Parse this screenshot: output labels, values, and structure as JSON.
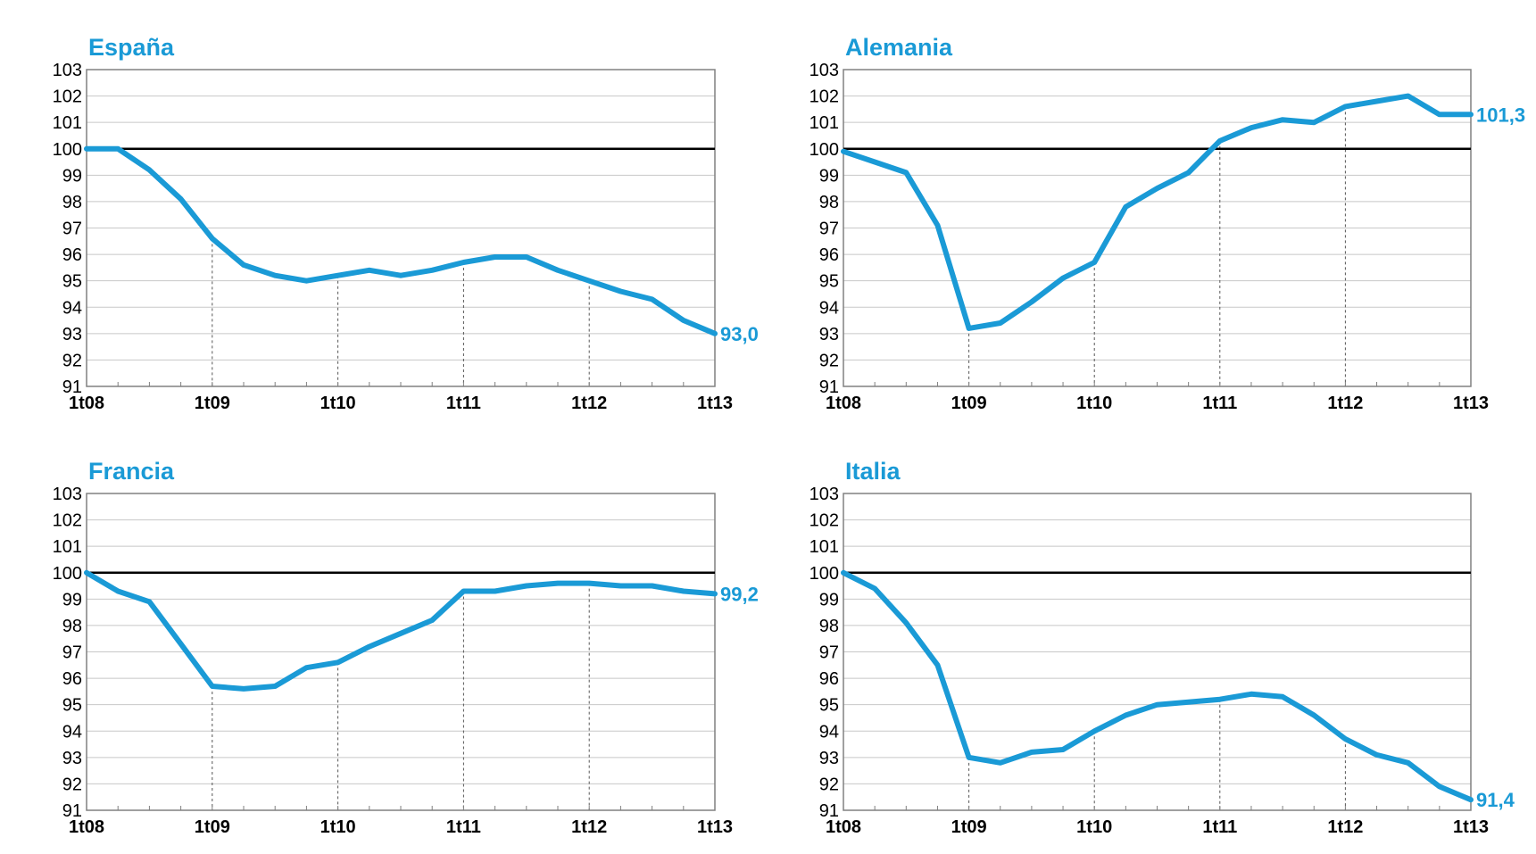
{
  "colors": {
    "series": "#1a9ad6",
    "title": "#1a9ad6",
    "baseline": "#000000",
    "grid": "#c8c8c8",
    "frame": "#808080"
  },
  "chart_data": [
    {
      "type": "line",
      "title": "España",
      "categories": [
        "1t08",
        "2t08",
        "3t08",
        "4t08",
        "1t09",
        "2t09",
        "3t09",
        "4t09",
        "1t10",
        "2t10",
        "3t10",
        "4t10",
        "1t11",
        "2t11",
        "3t11",
        "4t11",
        "1t12",
        "2t12",
        "3t12",
        "4t12",
        "1t13"
      ],
      "x_ticks": [
        "1t08",
        "1t09",
        "1t10",
        "1t11",
        "1t12",
        "1t13"
      ],
      "values": [
        100.0,
        100.0,
        99.2,
        98.1,
        96.6,
        95.6,
        95.2,
        95.0,
        95.2,
        95.4,
        95.2,
        95.4,
        95.7,
        95.9,
        95.9,
        95.4,
        95.0,
        94.6,
        94.3,
        93.5,
        93.0
      ],
      "end_label": "93,0",
      "ylim": [
        91,
        103
      ],
      "y_ticks": [
        "91",
        "92",
        "93",
        "94",
        "95",
        "96",
        "97",
        "98",
        "99",
        "100",
        "101",
        "102",
        "103"
      ],
      "baseline": 100,
      "grid": true
    },
    {
      "type": "line",
      "title": "Alemania",
      "categories": [
        "1t08",
        "2t08",
        "3t08",
        "4t08",
        "1t09",
        "2t09",
        "3t09",
        "4t09",
        "1t10",
        "2t10",
        "3t10",
        "4t10",
        "1t11",
        "2t11",
        "3t11",
        "4t11",
        "1t12",
        "2t12",
        "3t12",
        "4t12",
        "1t13"
      ],
      "x_ticks": [
        "1t08",
        "1t09",
        "1t10",
        "1t11",
        "1t12",
        "1t13"
      ],
      "values": [
        99.9,
        99.5,
        99.1,
        97.1,
        93.2,
        93.4,
        94.2,
        95.1,
        95.7,
        97.8,
        98.5,
        99.1,
        100.3,
        100.8,
        101.1,
        101.0,
        101.6,
        101.8,
        102.0,
        101.3,
        101.3
      ],
      "end_label": "101,3",
      "ylim": [
        91,
        103
      ],
      "y_ticks": [
        "91",
        "92",
        "93",
        "94",
        "95",
        "96",
        "97",
        "98",
        "99",
        "100",
        "101",
        "102",
        "103"
      ],
      "baseline": 100,
      "grid": true
    },
    {
      "type": "line",
      "title": "Francia",
      "categories": [
        "1t08",
        "2t08",
        "3t08",
        "4t08",
        "1t09",
        "2t09",
        "3t09",
        "4t09",
        "1t10",
        "2t10",
        "3t10",
        "4t10",
        "1t11",
        "2t11",
        "3t11",
        "4t11",
        "1t12",
        "2t12",
        "3t12",
        "4t12",
        "1t13"
      ],
      "x_ticks": [
        "1t08",
        "1t09",
        "1t10",
        "1t11",
        "1t12",
        "1t13"
      ],
      "values": [
        100.0,
        99.3,
        98.9,
        97.3,
        95.7,
        95.6,
        95.7,
        96.4,
        96.6,
        97.2,
        97.7,
        98.2,
        99.3,
        99.3,
        99.5,
        99.6,
        99.6,
        99.5,
        99.5,
        99.3,
        99.2
      ],
      "end_label": "99,2",
      "ylim": [
        91,
        103
      ],
      "y_ticks": [
        "91",
        "92",
        "93",
        "94",
        "95",
        "96",
        "97",
        "98",
        "99",
        "100",
        "101",
        "102",
        "103"
      ],
      "baseline": 100,
      "grid": true
    },
    {
      "type": "line",
      "title": "Italia",
      "categories": [
        "1t08",
        "2t08",
        "3t08",
        "4t08",
        "1t09",
        "2t09",
        "3t09",
        "4t09",
        "1t10",
        "2t10",
        "3t10",
        "4t10",
        "1t11",
        "2t11",
        "3t11",
        "4t11",
        "1t12",
        "2t12",
        "3t12",
        "4t12",
        "1t13"
      ],
      "x_ticks": [
        "1t08",
        "1t09",
        "1t10",
        "1t11",
        "1t12",
        "1t13"
      ],
      "values": [
        100.0,
        99.4,
        98.1,
        96.5,
        93.0,
        92.8,
        93.2,
        93.3,
        94.0,
        94.6,
        95.0,
        95.1,
        95.2,
        95.4,
        95.3,
        94.6,
        93.7,
        93.1,
        92.8,
        91.9,
        91.4
      ],
      "end_label": "91,4",
      "ylim": [
        91,
        103
      ],
      "y_ticks": [
        "91",
        "92",
        "93",
        "94",
        "95",
        "96",
        "97",
        "98",
        "99",
        "100",
        "101",
        "102",
        "103"
      ],
      "baseline": 100,
      "grid": true
    }
  ]
}
